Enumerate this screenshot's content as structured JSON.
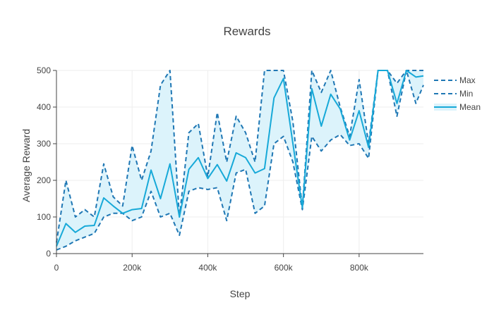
{
  "chart_data": {
    "type": "line",
    "title": "Rewards",
    "xlabel": "Step",
    "ylabel": "Average Reward",
    "xlim": [
      0,
      970000
    ],
    "ylim": [
      0,
      500
    ],
    "x_ticks": [
      0,
      200000,
      400000,
      600000,
      800000
    ],
    "x_tick_labels": [
      "0",
      "200k",
      "400k",
      "600k",
      "800k"
    ],
    "y_ticks": [
      0,
      100,
      200,
      300,
      400,
      500
    ],
    "y_tick_labels": [
      "0",
      "100",
      "200",
      "300",
      "400",
      "500"
    ],
    "grid": true,
    "legend_position": "right",
    "band_color": "#dcf3fb",
    "x": [
      0,
      25000,
      50000,
      75000,
      100000,
      125000,
      150000,
      175000,
      200000,
      225000,
      250000,
      275000,
      300000,
      325000,
      350000,
      375000,
      400000,
      425000,
      450000,
      475000,
      500000,
      525000,
      550000,
      575000,
      600000,
      625000,
      650000,
      675000,
      700000,
      725000,
      750000,
      775000,
      800000,
      825000,
      850000,
      875000,
      900000,
      925000,
      950000,
      970000
    ],
    "series": [
      {
        "name": "Max",
        "color": "#1f77b4",
        "dash": "dashed",
        "values": [
          30,
          200,
          100,
          120,
          100,
          245,
          155,
          130,
          295,
          200,
          280,
          460,
          500,
          100,
          330,
          355,
          210,
          385,
          250,
          375,
          330,
          250,
          500,
          500,
          500,
          360,
          125,
          500,
          440,
          500,
          400,
          320,
          475,
          300,
          500,
          500,
          375,
          500,
          410,
          460
        ]
      },
      {
        "name": "Min",
        "color": "#1f77b4",
        "dash": "dashed",
        "values": [
          10,
          20,
          35,
          45,
          55,
          100,
          110,
          110,
          90,
          100,
          170,
          100,
          110,
          50,
          170,
          180,
          175,
          180,
          90,
          220,
          230,
          110,
          130,
          300,
          320,
          250,
          120,
          320,
          280,
          310,
          325,
          295,
          300,
          260,
          500,
          500,
          465,
          500,
          500,
          500
        ]
      },
      {
        "name": "Mean",
        "color": "#17a9d8",
        "dash": "solid",
        "values": [
          20,
          82,
          58,
          75,
          77,
          152,
          130,
          110,
          120,
          123,
          228,
          150,
          245,
          100,
          230,
          262,
          205,
          243,
          198,
          275,
          262,
          220,
          232,
          425,
          478,
          300,
          125,
          450,
          348,
          435,
          395,
          310,
          390,
          290,
          500,
          500,
          410,
          500,
          482,
          485
        ]
      }
    ]
  }
}
